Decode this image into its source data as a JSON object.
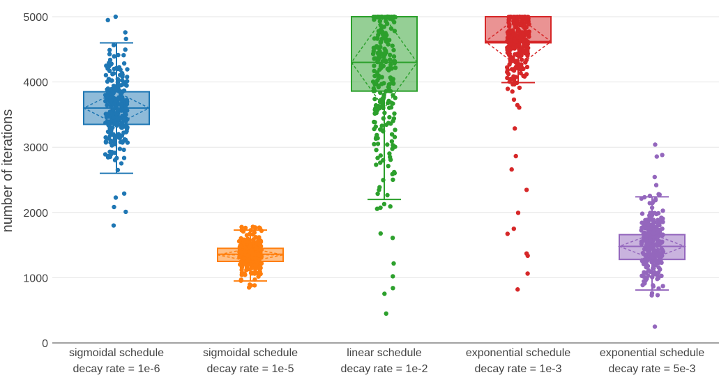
{
  "chart_data": {
    "type": "box",
    "title": "",
    "xlabel": "",
    "ylabel": "number of iterations",
    "ylim": [
      0,
      5000
    ],
    "yticks": [
      0,
      1000,
      2000,
      3000,
      4000,
      5000
    ],
    "grid": true,
    "legend": "none",
    "categories": [
      {
        "line1": "sigmoidal schedule",
        "line2": "decay rate = 1e-6"
      },
      {
        "line1": "sigmoidal schedule",
        "line2": "decay rate = 1e-5"
      },
      {
        "line1": "linear schedule",
        "line2": "decay rate = 1e-2"
      },
      {
        "line1": "exponential schedule",
        "line2": "decay rate = 1e-3"
      },
      {
        "line1": "exponential schedule",
        "line2": "decay rate = 5e-3"
      }
    ],
    "series": [
      {
        "color": "#1f77b4",
        "whisker_low": 2600,
        "q1": 3350,
        "median": 3600,
        "q3": 3850,
        "whisker_high": 4600,
        "mean": 3600,
        "sd": 250,
        "points_range": [
          1800,
          5000
        ]
      },
      {
        "color": "#ff7f0e",
        "whisker_low": 950,
        "q1": 1250,
        "median": 1360,
        "q3": 1450,
        "whisker_high": 1730,
        "mean": 1350,
        "sd": 100,
        "points_range": [
          850,
          1780
        ]
      },
      {
        "color": "#2ca02c",
        "whisker_low": 2200,
        "q1": 3860,
        "median": 4300,
        "q3": 5000,
        "whisker_high": 5000,
        "mean": 4300,
        "sd": 700,
        "points_range": [
          450,
          5000
        ]
      },
      {
        "color": "#d62728",
        "whisker_low": 3990,
        "q1": 4600,
        "median": 4620,
        "q3": 5000,
        "whisker_high": 5000,
        "mean": 4620,
        "sd": 380,
        "points_range": [
          820,
          5000
        ]
      },
      {
        "color": "#9467bd",
        "whisker_low": 810,
        "q1": 1280,
        "median": 1480,
        "q3": 1660,
        "whisker_high": 2240,
        "mean": 1480,
        "sd": 190,
        "points_range": [
          250,
          3040
        ]
      }
    ]
  }
}
